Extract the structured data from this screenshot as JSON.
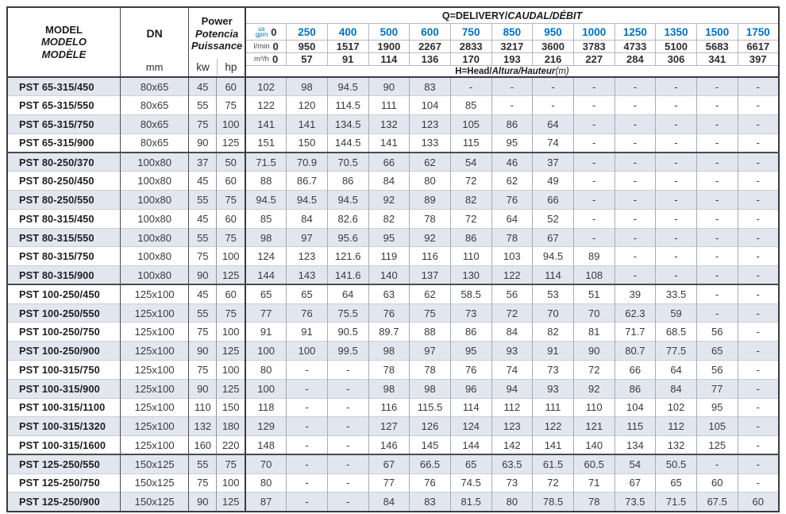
{
  "header": {
    "model_lines": [
      "MODEL",
      "MODELO",
      "MODÈLE"
    ],
    "dn_label": "DN",
    "dn_unit": "mm",
    "power_lines": [
      "Power",
      "Potencia",
      "Puissance"
    ],
    "power_units": [
      "kw",
      "hp"
    ],
    "q_title": {
      "plain": "Q=DELIVERY/",
      "italic": "CAUDAL/DÉBIT"
    },
    "h_title": {
      "plain": "H=Head/",
      "italic": "Altura/Hauteur",
      "unit": "(m)"
    },
    "flow_units": [
      {
        "label_top": "us",
        "label_bottom": "gpm",
        "values": [
          "0",
          "250",
          "400",
          "500",
          "600",
          "750",
          "850",
          "950",
          "1000",
          "1250",
          "1350",
          "1500",
          "1750"
        ]
      },
      {
        "label": "l/min",
        "values": [
          "0",
          "950",
          "1517",
          "1900",
          "2267",
          "2833",
          "3217",
          "3600",
          "3783",
          "4733",
          "5100",
          "5683",
          "6617"
        ]
      },
      {
        "label": "m³/h",
        "values": [
          "0",
          "57",
          "91",
          "114",
          "136",
          "170",
          "193",
          "216",
          "227",
          "284",
          "306",
          "341",
          "397"
        ]
      }
    ]
  },
  "colors": {
    "accent_blue": "#0070c0",
    "row_stripe": "#e2e6ef"
  },
  "rows": [
    {
      "model": "PST 65-315/450",
      "dn": "80x65",
      "kw": "45",
      "hp": "60",
      "head": [
        "102",
        "98",
        "94.5",
        "90",
        "83",
        "-",
        "-",
        "-",
        "-",
        "-",
        "-",
        "-",
        "-"
      ]
    },
    {
      "model": "PST 65-315/550",
      "dn": "80x65",
      "kw": "55",
      "hp": "75",
      "head": [
        "122",
        "120",
        "114.5",
        "111",
        "104",
        "85",
        "-",
        "-",
        "-",
        "-",
        "-",
        "-",
        "-"
      ]
    },
    {
      "model": "PST 65-315/750",
      "dn": "80x65",
      "kw": "75",
      "hp": "100",
      "head": [
        "141",
        "141",
        "134.5",
        "132",
        "123",
        "105",
        "86",
        "64",
        "-",
        "-",
        "-",
        "-",
        "-"
      ]
    },
    {
      "model": "PST 65-315/900",
      "dn": "80x65",
      "kw": "90",
      "hp": "125",
      "head": [
        "151",
        "150",
        "144.5",
        "141",
        "133",
        "115",
        "95",
        "74",
        "-",
        "-",
        "-",
        "-",
        "-"
      ]
    },
    {
      "model": "PST 80-250/370",
      "dn": "100x80",
      "kw": "37",
      "hp": "50",
      "head": [
        "71.5",
        "70.9",
        "70.5",
        "66",
        "62",
        "54",
        "46",
        "37",
        "-",
        "-",
        "-",
        "-",
        "-"
      ]
    },
    {
      "model": "PST 80-250/450",
      "dn": "100x80",
      "kw": "45",
      "hp": "60",
      "head": [
        "88",
        "86.7",
        "86",
        "84",
        "80",
        "72",
        "62",
        "49",
        "-",
        "-",
        "-",
        "-",
        "-"
      ]
    },
    {
      "model": "PST 80-250/550",
      "dn": "100x80",
      "kw": "55",
      "hp": "75",
      "head": [
        "94.5",
        "94.5",
        "94.5",
        "92",
        "89",
        "82",
        "76",
        "66",
        "-",
        "-",
        "-",
        "-",
        "-"
      ]
    },
    {
      "model": "PST 80-315/450",
      "dn": "100x80",
      "kw": "45",
      "hp": "60",
      "head": [
        "85",
        "84",
        "82.6",
        "82",
        "78",
        "72",
        "64",
        "52",
        "-",
        "-",
        "-",
        "-",
        "-"
      ]
    },
    {
      "model": "PST 80-315/550",
      "dn": "100x80",
      "kw": "55",
      "hp": "75",
      "head": [
        "98",
        "97",
        "95.6",
        "95",
        "92",
        "86",
        "78",
        "67",
        "-",
        "-",
        "-",
        "-",
        "-"
      ]
    },
    {
      "model": "PST 80-315/750",
      "dn": "100x80",
      "kw": "75",
      "hp": "100",
      "head": [
        "124",
        "123",
        "121.6",
        "119",
        "116",
        "110",
        "103",
        "94.5",
        "89",
        "-",
        "-",
        "-",
        "-"
      ]
    },
    {
      "model": "PST 80-315/900",
      "dn": "100x80",
      "kw": "90",
      "hp": "125",
      "head": [
        "144",
        "143",
        "141.6",
        "140",
        "137",
        "130",
        "122",
        "114",
        "108",
        "-",
        "-",
        "-",
        "-"
      ]
    },
    {
      "model": "PST 100-250/450",
      "dn": "125x100",
      "kw": "45",
      "hp": "60",
      "head": [
        "65",
        "65",
        "64",
        "63",
        "62",
        "58.5",
        "56",
        "53",
        "51",
        "39",
        "33.5",
        "-",
        "-"
      ]
    },
    {
      "model": "PST 100-250/550",
      "dn": "125x100",
      "kw": "55",
      "hp": "75",
      "head": [
        "77",
        "76",
        "75.5",
        "76",
        "75",
        "73",
        "72",
        "70",
        "70",
        "62.3",
        "59",
        "-",
        "-"
      ]
    },
    {
      "model": "PST 100-250/750",
      "dn": "125x100",
      "kw": "75",
      "hp": "100",
      "head": [
        "91",
        "91",
        "90.5",
        "89.7",
        "88",
        "86",
        "84",
        "82",
        "81",
        "71.7",
        "68.5",
        "56",
        "-"
      ]
    },
    {
      "model": "PST 100-250/900",
      "dn": "125x100",
      "kw": "90",
      "hp": "125",
      "head": [
        "100",
        "100",
        "99.5",
        "98",
        "97",
        "95",
        "93",
        "91",
        "90",
        "80.7",
        "77.5",
        "65",
        "-"
      ]
    },
    {
      "model": "PST 100-315/750",
      "dn": "125x100",
      "kw": "75",
      "hp": "100",
      "head": [
        "80",
        "-",
        "-",
        "78",
        "78",
        "76",
        "74",
        "73",
        "72",
        "66",
        "64",
        "56",
        "-"
      ]
    },
    {
      "model": "PST 100-315/900",
      "dn": "125x100",
      "kw": "90",
      "hp": "125",
      "head": [
        "100",
        "-",
        "-",
        "98",
        "98",
        "96",
        "94",
        "93",
        "92",
        "86",
        "84",
        "77",
        "-"
      ]
    },
    {
      "model": "PST 100-315/1100",
      "dn": "125x100",
      "kw": "110",
      "hp": "150",
      "head": [
        "118",
        "-",
        "-",
        "116",
        "115.5",
        "114",
        "112",
        "111",
        "110",
        "104",
        "102",
        "95",
        "-"
      ]
    },
    {
      "model": "PST 100-315/1320",
      "dn": "125x100",
      "kw": "132",
      "hp": "180",
      "head": [
        "129",
        "-",
        "-",
        "127",
        "126",
        "124",
        "123",
        "122",
        "121",
        "115",
        "112",
        "105",
        "-"
      ]
    },
    {
      "model": "PST 100-315/1600",
      "dn": "125x100",
      "kw": "160",
      "hp": "220",
      "head": [
        "148",
        "-",
        "-",
        "146",
        "145",
        "144",
        "142",
        "141",
        "140",
        "134",
        "132",
        "125",
        "-"
      ]
    },
    {
      "model": "PST 125-250/550",
      "dn": "150x125",
      "kw": "55",
      "hp": "75",
      "head": [
        "70",
        "-",
        "-",
        "67",
        "66.5",
        "65",
        "63.5",
        "61.5",
        "60.5",
        "54",
        "50.5",
        "-",
        "-"
      ]
    },
    {
      "model": "PST 125-250/750",
      "dn": "150x125",
      "kw": "75",
      "hp": "100",
      "head": [
        "80",
        "-",
        "-",
        "77",
        "76",
        "74.5",
        "73",
        "72",
        "71",
        "67",
        "65",
        "60",
        "-"
      ]
    },
    {
      "model": "PST 125-250/900",
      "dn": "150x125",
      "kw": "90",
      "hp": "125",
      "head": [
        "87",
        "-",
        "-",
        "84",
        "83",
        "81.5",
        "80",
        "78.5",
        "78",
        "73.5",
        "71.5",
        "67.5",
        "60"
      ]
    }
  ]
}
